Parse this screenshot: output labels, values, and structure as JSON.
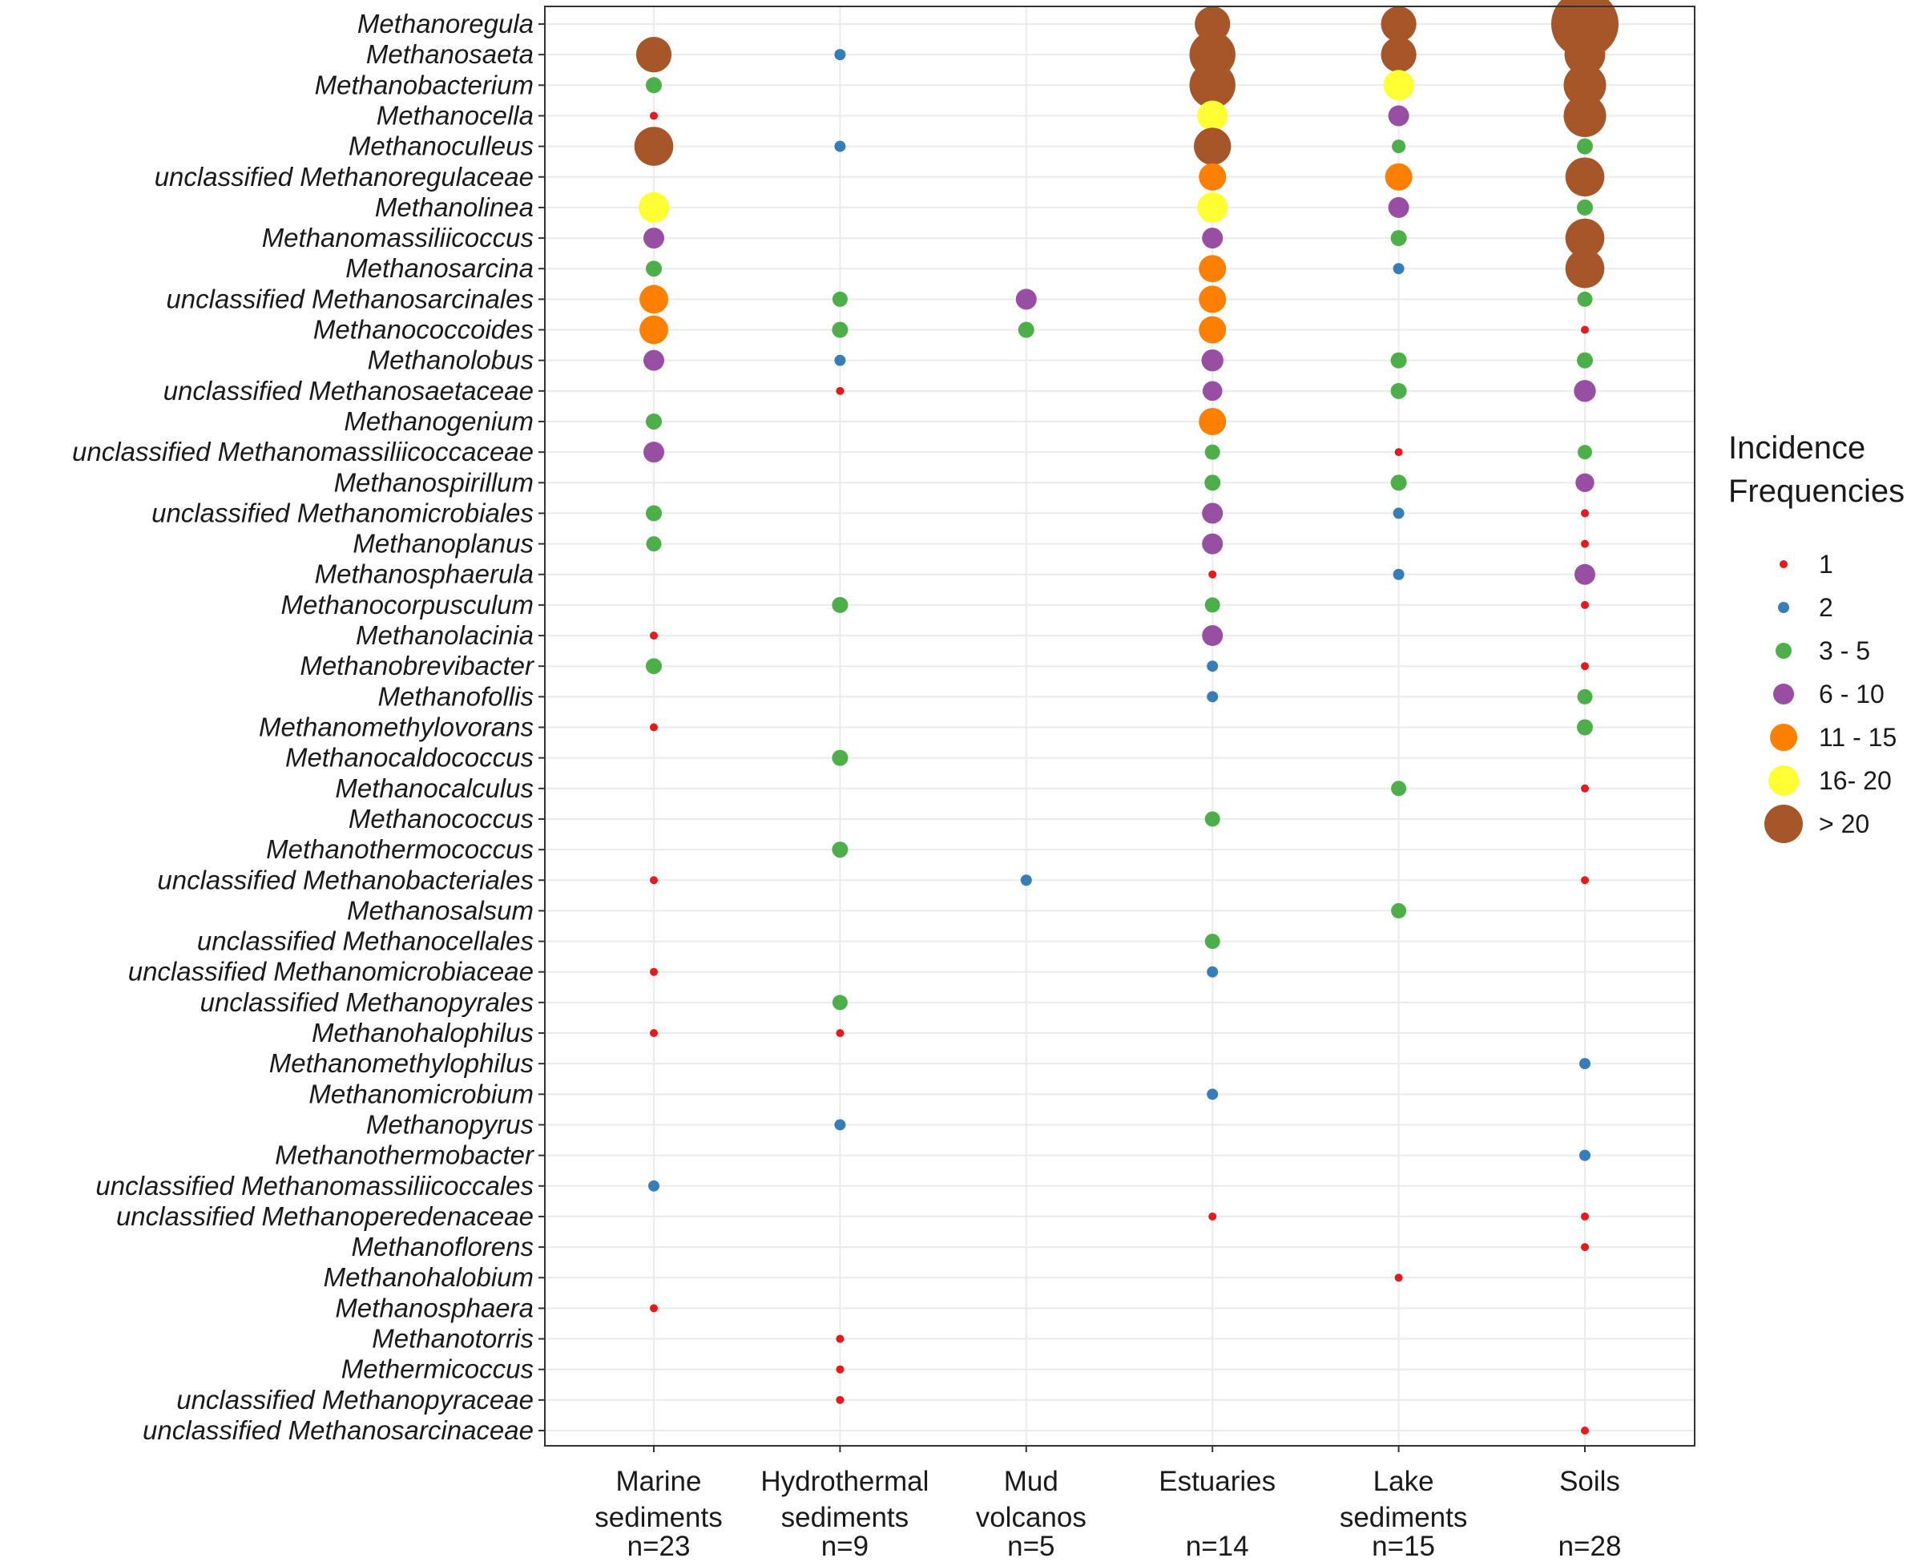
{
  "chart_data": {
    "type": "bubble",
    "title": "",
    "categories": [
      {
        "line1": "Marine",
        "line2": "sediments",
        "line3": "n=23"
      },
      {
        "line1": "Hydrothermal",
        "line2": "sediments",
        "line3": "n=9"
      },
      {
        "line1": "Mud",
        "line2": "volcanos",
        "line3": "n=5"
      },
      {
        "line1": "Estuaries",
        "line2": "",
        "line3": "n=14"
      },
      {
        "line1": "Lake",
        "line2": "sediments",
        "line3": "n=15"
      },
      {
        "line1": "Soils",
        "line2": "",
        "line3": "n=28"
      }
    ],
    "taxa": [
      "Methanoregula",
      "Methanosaeta",
      "Methanobacterium",
      "Methanocella",
      "Methanoculleus",
      "unclassified Methanoregulaceae",
      "Methanolinea",
      "Methanomassiliicoccus",
      "Methanosarcina",
      "unclassified Methanosarcinales",
      "Methanococcoides",
      "Methanolobus",
      "unclassified Methanosaetaceae",
      "Methanogenium",
      "unclassified Methanomassiliicoccaceae",
      "Methanospirillum",
      "unclassified Methanomicrobiales",
      "Methanoplanus",
      "Methanosphaerula",
      "Methanocorpusculum",
      "Methanolacinia",
      "Methanobrevibacter",
      "Methanofollis",
      "Methanomethylovorans",
      "Methanocaldococcus",
      "Methanocalculus",
      "Methanococcus",
      "Methanothermococcus",
      "unclassified Methanobacteriales",
      "Methanosalsum",
      "unclassified Methanocellales",
      "unclassified Methanomicrobiaceae",
      "unclassified Methanopyrales",
      "Methanohalophilus",
      "Methanomethylophilus",
      "Methanomicrobium",
      "Methanopyrus",
      "Methanothermobacter",
      "unclassified Methanomassiliicoccales",
      "unclassified Methanoperedenaceae",
      "Methanoflorens",
      "Methanohalobium",
      "Methanosphaera",
      "Methanotorris",
      "Methermicoccus",
      "unclassified Methanopyraceae",
      "unclassified Methanosarcinaceae"
    ],
    "legend": {
      "title_line1": "Incidence",
      "title_line2": "Frequencies",
      "position": "right",
      "classes": [
        {
          "label": "1",
          "color": "#e41a1c"
        },
        {
          "label": "2",
          "color": "#377eb8"
        },
        {
          "label": "3 - 5",
          "color": "#4daf4a"
        },
        {
          "label": "6 - 10",
          "color": "#984ea3"
        },
        {
          "label": "11 - 15",
          "color": "#ff7f00"
        },
        {
          "label": "16- 20",
          "color": "#ffff33"
        },
        {
          "label": "> 20",
          "color": "#a65628"
        }
      ]
    },
    "points": [
      {
        "taxon": 0,
        "env": 3,
        "cls": 6,
        "size": 1.0
      },
      {
        "taxon": 0,
        "env": 4,
        "cls": 6,
        "size": 1.0
      },
      {
        "taxon": 0,
        "env": 5,
        "cls": 6,
        "size": 1.9
      },
      {
        "taxon": 1,
        "env": 0,
        "cls": 6,
        "size": 1.0
      },
      {
        "taxon": 1,
        "env": 1,
        "cls": 1,
        "size": 1.0
      },
      {
        "taxon": 1,
        "env": 3,
        "cls": 6,
        "size": 1.3
      },
      {
        "taxon": 1,
        "env": 4,
        "cls": 6,
        "size": 1.0
      },
      {
        "taxon": 1,
        "env": 5,
        "cls": 6,
        "size": 1.15
      },
      {
        "taxon": 2,
        "env": 0,
        "cls": 2,
        "size": 1.0
      },
      {
        "taxon": 2,
        "env": 3,
        "cls": 6,
        "size": 1.3
      },
      {
        "taxon": 2,
        "env": 4,
        "cls": 5,
        "size": 1.0
      },
      {
        "taxon": 2,
        "env": 5,
        "cls": 6,
        "size": 1.2
      },
      {
        "taxon": 3,
        "env": 0,
        "cls": 0,
        "size": 1.0
      },
      {
        "taxon": 3,
        "env": 3,
        "cls": 5,
        "size": 1.0
      },
      {
        "taxon": 3,
        "env": 4,
        "cls": 3,
        "size": 1.0
      },
      {
        "taxon": 3,
        "env": 5,
        "cls": 6,
        "size": 1.2
      },
      {
        "taxon": 4,
        "env": 0,
        "cls": 6,
        "size": 1.1
      },
      {
        "taxon": 4,
        "env": 1,
        "cls": 1,
        "size": 1.0
      },
      {
        "taxon": 4,
        "env": 3,
        "cls": 6,
        "size": 1.05
      },
      {
        "taxon": 4,
        "env": 4,
        "cls": 2,
        "size": 0.85
      },
      {
        "taxon": 4,
        "env": 5,
        "cls": 2,
        "size": 1.0
      },
      {
        "taxon": 5,
        "env": 3,
        "cls": 4,
        "size": 1.0
      },
      {
        "taxon": 5,
        "env": 4,
        "cls": 4,
        "size": 1.0
      },
      {
        "taxon": 5,
        "env": 5,
        "cls": 6,
        "size": 1.1
      },
      {
        "taxon": 6,
        "env": 0,
        "cls": 5,
        "size": 1.0
      },
      {
        "taxon": 6,
        "env": 3,
        "cls": 5,
        "size": 1.0
      },
      {
        "taxon": 6,
        "env": 4,
        "cls": 3,
        "size": 1.0
      },
      {
        "taxon": 6,
        "env": 5,
        "cls": 2,
        "size": 1.0
      },
      {
        "taxon": 7,
        "env": 0,
        "cls": 3,
        "size": 1.0
      },
      {
        "taxon": 7,
        "env": 3,
        "cls": 3,
        "size": 1.0
      },
      {
        "taxon": 7,
        "env": 4,
        "cls": 2,
        "size": 1.0
      },
      {
        "taxon": 7,
        "env": 5,
        "cls": 6,
        "size": 1.1
      },
      {
        "taxon": 8,
        "env": 0,
        "cls": 2,
        "size": 1.0
      },
      {
        "taxon": 8,
        "env": 3,
        "cls": 4,
        "size": 1.0
      },
      {
        "taxon": 8,
        "env": 4,
        "cls": 1,
        "size": 1.0
      },
      {
        "taxon": 8,
        "env": 5,
        "cls": 6,
        "size": 1.1
      },
      {
        "taxon": 9,
        "env": 0,
        "cls": 4,
        "size": 1.05
      },
      {
        "taxon": 9,
        "env": 1,
        "cls": 2,
        "size": 0.95
      },
      {
        "taxon": 9,
        "env": 2,
        "cls": 3,
        "size": 1.0
      },
      {
        "taxon": 9,
        "env": 3,
        "cls": 4,
        "size": 1.0
      },
      {
        "taxon": 9,
        "env": 5,
        "cls": 2,
        "size": 0.95
      },
      {
        "taxon": 10,
        "env": 0,
        "cls": 4,
        "size": 1.05
      },
      {
        "taxon": 10,
        "env": 1,
        "cls": 2,
        "size": 1.0
      },
      {
        "taxon": 10,
        "env": 2,
        "cls": 2,
        "size": 1.0
      },
      {
        "taxon": 10,
        "env": 3,
        "cls": 4,
        "size": 1.0
      },
      {
        "taxon": 10,
        "env": 5,
        "cls": 0,
        "size": 1.0
      },
      {
        "taxon": 11,
        "env": 0,
        "cls": 3,
        "size": 1.0
      },
      {
        "taxon": 11,
        "env": 1,
        "cls": 1,
        "size": 1.0
      },
      {
        "taxon": 11,
        "env": 3,
        "cls": 3,
        "size": 1.05
      },
      {
        "taxon": 11,
        "env": 4,
        "cls": 2,
        "size": 1.0
      },
      {
        "taxon": 11,
        "env": 5,
        "cls": 2,
        "size": 1.0
      },
      {
        "taxon": 12,
        "env": 1,
        "cls": 0,
        "size": 1.0
      },
      {
        "taxon": 12,
        "env": 3,
        "cls": 3,
        "size": 0.95
      },
      {
        "taxon": 12,
        "env": 4,
        "cls": 2,
        "size": 1.0
      },
      {
        "taxon": 12,
        "env": 5,
        "cls": 3,
        "size": 1.05
      },
      {
        "taxon": 13,
        "env": 0,
        "cls": 2,
        "size": 1.0
      },
      {
        "taxon": 13,
        "env": 3,
        "cls": 4,
        "size": 1.0
      },
      {
        "taxon": 14,
        "env": 0,
        "cls": 3,
        "size": 1.0
      },
      {
        "taxon": 14,
        "env": 3,
        "cls": 2,
        "size": 0.95
      },
      {
        "taxon": 14,
        "env": 4,
        "cls": 0,
        "size": 1.0
      },
      {
        "taxon": 14,
        "env": 5,
        "cls": 2,
        "size": 0.9
      },
      {
        "taxon": 15,
        "env": 3,
        "cls": 2,
        "size": 1.0
      },
      {
        "taxon": 15,
        "env": 4,
        "cls": 2,
        "size": 1.0
      },
      {
        "taxon": 15,
        "env": 5,
        "cls": 3,
        "size": 0.9
      },
      {
        "taxon": 16,
        "env": 0,
        "cls": 2,
        "size": 1.0
      },
      {
        "taxon": 16,
        "env": 3,
        "cls": 3,
        "size": 1.0
      },
      {
        "taxon": 16,
        "env": 4,
        "cls": 1,
        "size": 1.0
      },
      {
        "taxon": 16,
        "env": 5,
        "cls": 0,
        "size": 1.0
      },
      {
        "taxon": 17,
        "env": 0,
        "cls": 2,
        "size": 0.95
      },
      {
        "taxon": 17,
        "env": 3,
        "cls": 3,
        "size": 1.0
      },
      {
        "taxon": 17,
        "env": 5,
        "cls": 0,
        "size": 1.0
      },
      {
        "taxon": 18,
        "env": 3,
        "cls": 0,
        "size": 1.0
      },
      {
        "taxon": 18,
        "env": 4,
        "cls": 1,
        "size": 1.0
      },
      {
        "taxon": 18,
        "env": 5,
        "cls": 3,
        "size": 1.0
      },
      {
        "taxon": 19,
        "env": 1,
        "cls": 2,
        "size": 1.0
      },
      {
        "taxon": 19,
        "env": 3,
        "cls": 2,
        "size": 0.95
      },
      {
        "taxon": 19,
        "env": 5,
        "cls": 0,
        "size": 1.0
      },
      {
        "taxon": 20,
        "env": 0,
        "cls": 0,
        "size": 1.0
      },
      {
        "taxon": 20,
        "env": 3,
        "cls": 3,
        "size": 1.0
      },
      {
        "taxon": 21,
        "env": 0,
        "cls": 2,
        "size": 1.0
      },
      {
        "taxon": 21,
        "env": 3,
        "cls": 1,
        "size": 1.0
      },
      {
        "taxon": 21,
        "env": 5,
        "cls": 0,
        "size": 1.0
      },
      {
        "taxon": 22,
        "env": 3,
        "cls": 1,
        "size": 1.0
      },
      {
        "taxon": 22,
        "env": 5,
        "cls": 2,
        "size": 0.95
      },
      {
        "taxon": 23,
        "env": 0,
        "cls": 0,
        "size": 1.0
      },
      {
        "taxon": 23,
        "env": 5,
        "cls": 2,
        "size": 1.0
      },
      {
        "taxon": 24,
        "env": 1,
        "cls": 2,
        "size": 1.0
      },
      {
        "taxon": 25,
        "env": 4,
        "cls": 2,
        "size": 0.95
      },
      {
        "taxon": 25,
        "env": 5,
        "cls": 0,
        "size": 1.0
      },
      {
        "taxon": 26,
        "env": 3,
        "cls": 2,
        "size": 0.95
      },
      {
        "taxon": 27,
        "env": 1,
        "cls": 2,
        "size": 1.0
      },
      {
        "taxon": 28,
        "env": 0,
        "cls": 0,
        "size": 1.0
      },
      {
        "taxon": 28,
        "env": 2,
        "cls": 1,
        "size": 1.0
      },
      {
        "taxon": 28,
        "env": 5,
        "cls": 0,
        "size": 1.0
      },
      {
        "taxon": 29,
        "env": 4,
        "cls": 2,
        "size": 0.95
      },
      {
        "taxon": 30,
        "env": 3,
        "cls": 2,
        "size": 0.95
      },
      {
        "taxon": 31,
        "env": 0,
        "cls": 0,
        "size": 1.0
      },
      {
        "taxon": 31,
        "env": 3,
        "cls": 1,
        "size": 1.0
      },
      {
        "taxon": 32,
        "env": 1,
        "cls": 2,
        "size": 0.95
      },
      {
        "taxon": 33,
        "env": 0,
        "cls": 0,
        "size": 1.0
      },
      {
        "taxon": 33,
        "env": 1,
        "cls": 0,
        "size": 1.0
      },
      {
        "taxon": 34,
        "env": 5,
        "cls": 1,
        "size": 1.0
      },
      {
        "taxon": 35,
        "env": 3,
        "cls": 1,
        "size": 1.0
      },
      {
        "taxon": 36,
        "env": 1,
        "cls": 1,
        "size": 1.0
      },
      {
        "taxon": 37,
        "env": 5,
        "cls": 1,
        "size": 1.0
      },
      {
        "taxon": 38,
        "env": 0,
        "cls": 1,
        "size": 1.0
      },
      {
        "taxon": 39,
        "env": 3,
        "cls": 0,
        "size": 1.0
      },
      {
        "taxon": 39,
        "env": 5,
        "cls": 0,
        "size": 1.0
      },
      {
        "taxon": 40,
        "env": 5,
        "cls": 0,
        "size": 1.0
      },
      {
        "taxon": 41,
        "env": 4,
        "cls": 0,
        "size": 1.0
      },
      {
        "taxon": 42,
        "env": 0,
        "cls": 0,
        "size": 1.0
      },
      {
        "taxon": 43,
        "env": 1,
        "cls": 0,
        "size": 1.0
      },
      {
        "taxon": 44,
        "env": 1,
        "cls": 0,
        "size": 1.0
      },
      {
        "taxon": 45,
        "env": 1,
        "cls": 0,
        "size": 1.0
      },
      {
        "taxon": 46,
        "env": 5,
        "cls": 0,
        "size": 1.0
      }
    ]
  }
}
